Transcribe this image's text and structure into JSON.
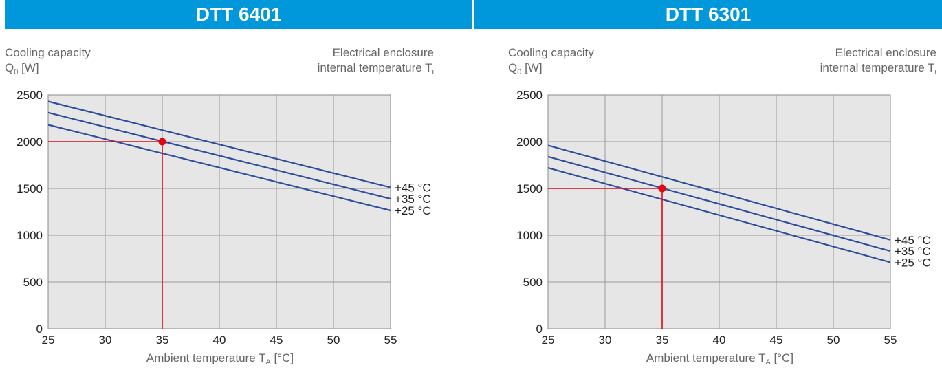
{
  "chart_data": [
    {
      "type": "line",
      "title": "DTT 6401",
      "ylabel_line1": "Cooling capacity",
      "ylabel_line2": "Q",
      "ylabel_sub": "0",
      "ylabel_unit": " [W]",
      "legend_title_line1": "Electrical enclosure",
      "legend_title_line2": "internal temperature T",
      "legend_title_sub": "i",
      "xlabel": "Ambient temperature T",
      "xlabel_sub": "A",
      "xlabel_unit": " [°C]",
      "xlim": [
        25,
        55
      ],
      "ylim": [
        0,
        2500
      ],
      "xticks": [
        25,
        30,
        35,
        40,
        45,
        50,
        55
      ],
      "yticks": [
        0,
        500,
        1000,
        1500,
        2000,
        2500
      ],
      "grid": true,
      "series": [
        {
          "name": "+45 °C",
          "x": [
            25,
            55
          ],
          "y": [
            2430,
            1510
          ]
        },
        {
          "name": "+35 °C",
          "x": [
            25,
            55
          ],
          "y": [
            2310,
            1390
          ]
        },
        {
          "name": "+25 °C",
          "x": [
            25,
            55
          ],
          "y": [
            2180,
            1265
          ]
        }
      ],
      "marker": {
        "x": 35,
        "y": 2000,
        "color": "#e30613"
      }
    },
    {
      "type": "line",
      "title": "DTT 6301",
      "ylabel_line1": "Cooling capacity",
      "ylabel_line2": "Q",
      "ylabel_sub": "0",
      "ylabel_unit": " [W]",
      "legend_title_line1": "Electrical enclosure",
      "legend_title_line2": "internal temperature T",
      "legend_title_sub": "i",
      "xlabel": "Ambient temperature T",
      "xlabel_sub": "A",
      "xlabel_unit": " [°C]",
      "xlim": [
        25,
        55
      ],
      "ylim": [
        0,
        2500
      ],
      "xticks": [
        25,
        30,
        35,
        40,
        45,
        50,
        55
      ],
      "yticks": [
        0,
        500,
        1000,
        1500,
        2000,
        2500
      ],
      "grid": true,
      "series": [
        {
          "name": "+45 °C",
          "x": [
            25,
            55
          ],
          "y": [
            1960,
            950
          ]
        },
        {
          "name": "+35 °C",
          "x": [
            25,
            55
          ],
          "y": [
            1840,
            830
          ]
        },
        {
          "name": "+25 °C",
          "x": [
            25,
            55
          ],
          "y": [
            1720,
            710
          ]
        }
      ],
      "marker": {
        "x": 35,
        "y": 1500,
        "color": "#e30613"
      }
    }
  ],
  "colors": {
    "header_bg": "#0098da",
    "plot_bg": "#e6e6e6",
    "line": "#2f4f9a",
    "marker": "#e30613",
    "label_gray": "#666666"
  }
}
